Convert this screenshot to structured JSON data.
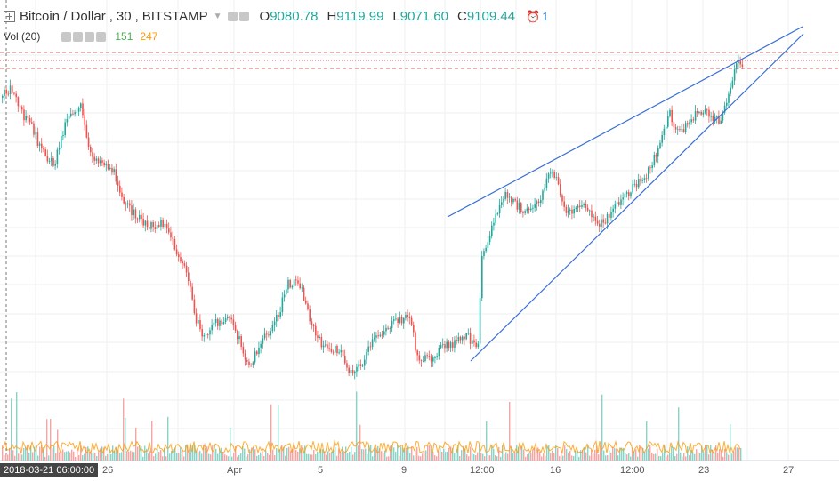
{
  "legend": {
    "symbol": "Bitcoin / Dollar",
    "interval": "30",
    "exchange": "BITSTAMP",
    "open_label": "O",
    "open": "9080.78",
    "high_label": "H",
    "high": "9119.99",
    "low_label": "L",
    "low": "9071.60",
    "close_label": "C",
    "close": "9109.44",
    "alerts_count": "1"
  },
  "volume_legend": {
    "label": "Vol (20)",
    "vol_value": "151",
    "ma_value": "247"
  },
  "x_axis": {
    "crosshair_label": "2018-03-21 06:00:00",
    "ticks": [
      "26",
      "Apr",
      "5",
      "9",
      "12:00",
      "16",
      "12:00",
      "23",
      "27"
    ]
  },
  "colors": {
    "up": "#26a69a",
    "down": "#ef5350",
    "trendline": "#3b6fd6",
    "volume_ma": "#ff9800"
  },
  "chart_data": {
    "type": "candlestick",
    "title": "Bitcoin / Dollar, 30, BITSTAMP",
    "approx_close_path": [
      {
        "x": "2018-03-20",
        "y": 8950
      },
      {
        "x": "2018-03-22",
        "y": 8700
      },
      {
        "x": "2018-03-24",
        "y": 8600
      },
      {
        "x": "2018-03-26",
        "y": 8200
      },
      {
        "x": "2018-03-28",
        "y": 7900
      },
      {
        "x": "2018-03-30",
        "y": 6950
      },
      {
        "x": "2018-04-01",
        "y": 6800
      },
      {
        "x": "2018-04-03",
        "y": 7350
      },
      {
        "x": "2018-04-04",
        "y": 7100
      },
      {
        "x": "2018-04-06",
        "y": 6650
      },
      {
        "x": "2018-04-08",
        "y": 7000
      },
      {
        "x": "2018-04-10",
        "y": 6800
      },
      {
        "x": "2018-04-11",
        "y": 6900
      },
      {
        "x": "2018-04-12",
        "y": 7900
      },
      {
        "x": "2018-04-14",
        "y": 8000
      },
      {
        "x": "2018-04-16",
        "y": 8100
      },
      {
        "x": "2018-04-18",
        "y": 8050
      },
      {
        "x": "2018-04-20",
        "y": 8300
      },
      {
        "x": "2018-04-21",
        "y": 8800
      },
      {
        "x": "2018-04-23",
        "y": 8900
      },
      {
        "x": "2018-04-24",
        "y": 9109.44
      }
    ]
  }
}
